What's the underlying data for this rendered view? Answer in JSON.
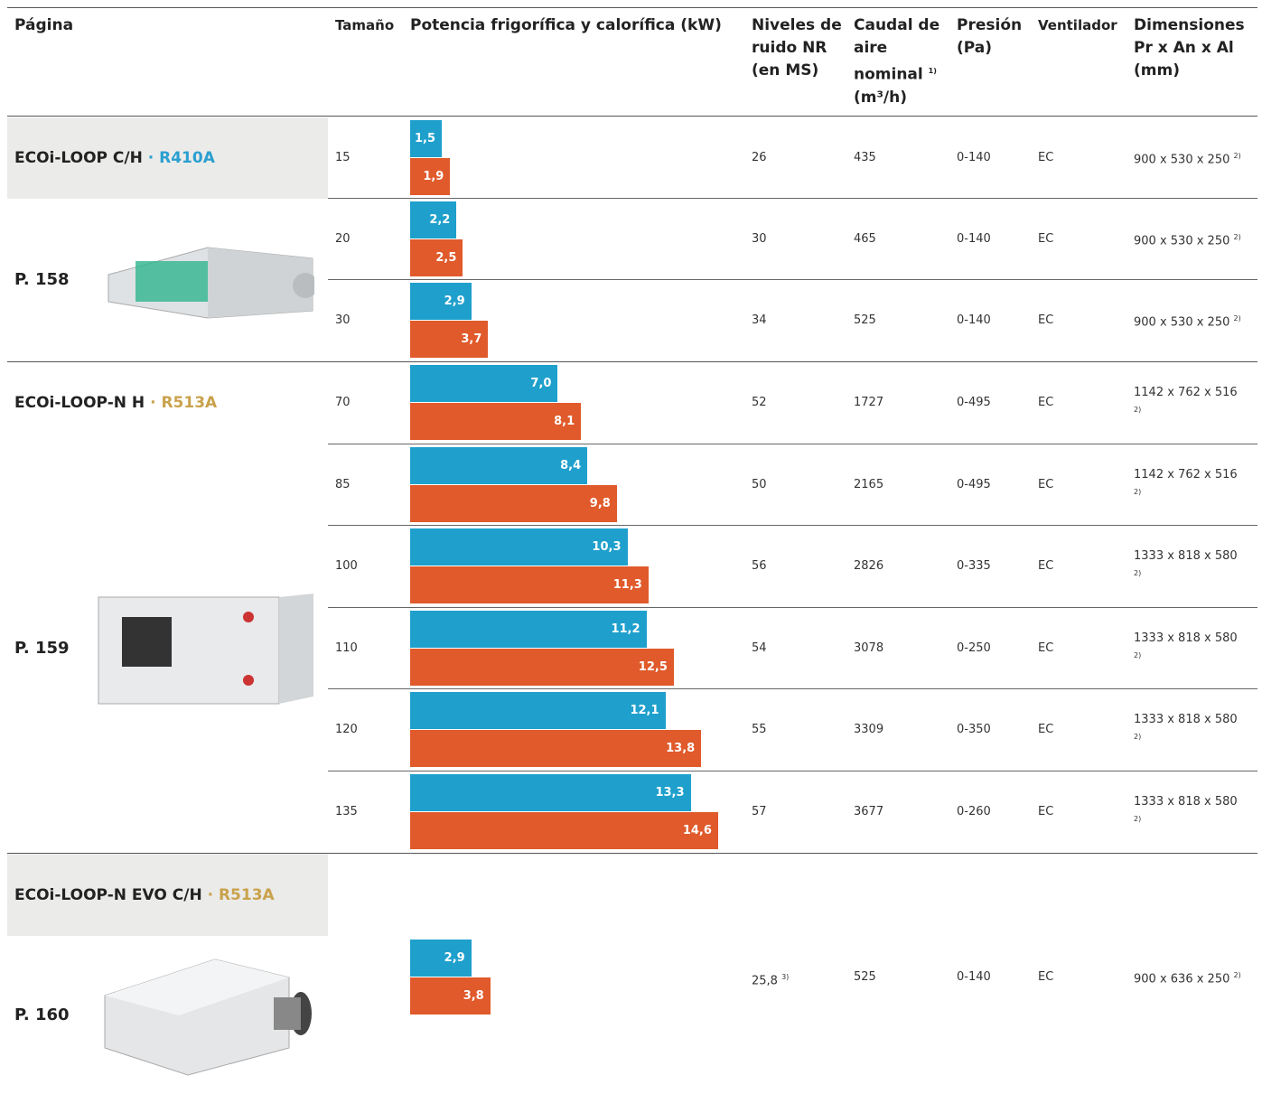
{
  "header": {
    "columns": [
      {
        "text": "Página"
      },
      {
        "text": "Tamaño"
      },
      {
        "text": "Potencia frigorífica y calorífica (kW)"
      },
      {
        "text": "Niveles de ruido NR (en MS)"
      },
      {
        "text": "Caudal de aire nominal",
        "note": "1)",
        "unit": "(m³/h)"
      },
      {
        "text": "Presión (Pa)"
      },
      {
        "text": "Ventilador"
      },
      {
        "text": "Dimensiones Pr x An x Al (mm)"
      }
    ]
  },
  "groups": [
    {
      "name": "ECOi-LOOP C/H",
      "refrigerant": "· R410A",
      "refrigerant_color": "#2a9fd0",
      "page": "P. 158",
      "rows": [
        {
          "size": "15",
          "cooling": {
            "value": 1.5,
            "label": "1,5"
          },
          "heating": {
            "value": 1.9,
            "label": "1,9"
          },
          "noise": "26",
          "airflow": "435",
          "pressure": "0-140",
          "fan": "EC",
          "dimensions": "900 x 530 x 250",
          "dimensions_note": "2)"
        },
        {
          "size": "20",
          "cooling": {
            "value": 2.2,
            "label": "2,2"
          },
          "heating": {
            "value": 2.5,
            "label": "2,5"
          },
          "noise": "30",
          "airflow": "465",
          "pressure": "0-140",
          "fan": "EC",
          "dimensions": "900 x 530 x 250",
          "dimensions_note": "2)"
        },
        {
          "size": "30",
          "cooling": {
            "value": 2.9,
            "label": "2,9"
          },
          "heating": {
            "value": 3.7,
            "label": "3,7"
          },
          "noise": "34",
          "airflow": "525",
          "pressure": "0-140",
          "fan": "EC",
          "dimensions": "900 x 530 x 250",
          "dimensions_note": "2)"
        }
      ]
    },
    {
      "name": "ECOi-LOOP-N H",
      "refrigerant": "· R513A",
      "refrigerant_color": "#c9a24c",
      "page": "P. 159",
      "rows": [
        {
          "size": "70",
          "cooling": {
            "value": 7.0,
            "label": "7,0"
          },
          "heating": {
            "value": 8.1,
            "label": "8,1"
          },
          "noise": "52",
          "airflow": "1727",
          "pressure": "0-495",
          "fan": "EC",
          "dimensions": "1142 x 762 x 516",
          "dimensions_note": "2)"
        },
        {
          "size": "85",
          "cooling": {
            "value": 8.4,
            "label": "8,4"
          },
          "heating": {
            "value": 9.8,
            "label": "9,8"
          },
          "noise": "50",
          "airflow": "2165",
          "pressure": "0-495",
          "fan": "EC",
          "dimensions": "1142 x 762 x 516",
          "dimensions_note": "2)"
        },
        {
          "size": "100",
          "cooling": {
            "value": 10.3,
            "label": "10,3"
          },
          "heating": {
            "value": 11.3,
            "label": "11,3"
          },
          "noise": "56",
          "airflow": "2826",
          "pressure": "0-335",
          "fan": "EC",
          "dimensions": "1333 x 818 x 580",
          "dimensions_note": "2)"
        },
        {
          "size": "110",
          "cooling": {
            "value": 11.2,
            "label": "11,2"
          },
          "heating": {
            "value": 12.5,
            "label": "12,5"
          },
          "noise": "54",
          "airflow": "3078",
          "pressure": "0-250",
          "fan": "EC",
          "dimensions": "1333 x 818 x 580",
          "dimensions_note": "2)"
        },
        {
          "size": "120",
          "cooling": {
            "value": 12.1,
            "label": "12,1"
          },
          "heating": {
            "value": 13.8,
            "label": "13,8"
          },
          "noise": "55",
          "airflow": "3309",
          "pressure": "0-350",
          "fan": "EC",
          "dimensions": "1333 x 818 x 580",
          "dimensions_note": "2)"
        },
        {
          "size": "135",
          "cooling": {
            "value": 13.3,
            "label": "13,3"
          },
          "heating": {
            "value": 14.6,
            "label": "14,6"
          },
          "noise": "57",
          "airflow": "3677",
          "pressure": "0-260",
          "fan": "EC",
          "dimensions": "1333 x 818 x 580",
          "dimensions_note": "2)"
        }
      ]
    },
    {
      "name": "ECOi-LOOP-N EVO C/H",
      "refrigerant": "· R513A",
      "refrigerant_color": "#c9a24c",
      "page": "P. 160",
      "rows": [
        {
          "cooling": {
            "value": 2.9,
            "label": "2,9"
          },
          "heating": {
            "value": 3.8,
            "label": "3,8"
          },
          "noise": "25,8",
          "noise_note": "3)",
          "airflow": "525",
          "pressure": "0-140",
          "fan": "EC",
          "dimensions": "900 x 636 x 250",
          "dimensions_note": "2)"
        }
      ]
    }
  ],
  "cooling_color": "#1fa0cc",
  "heating_color": "#e05a2b"
}
